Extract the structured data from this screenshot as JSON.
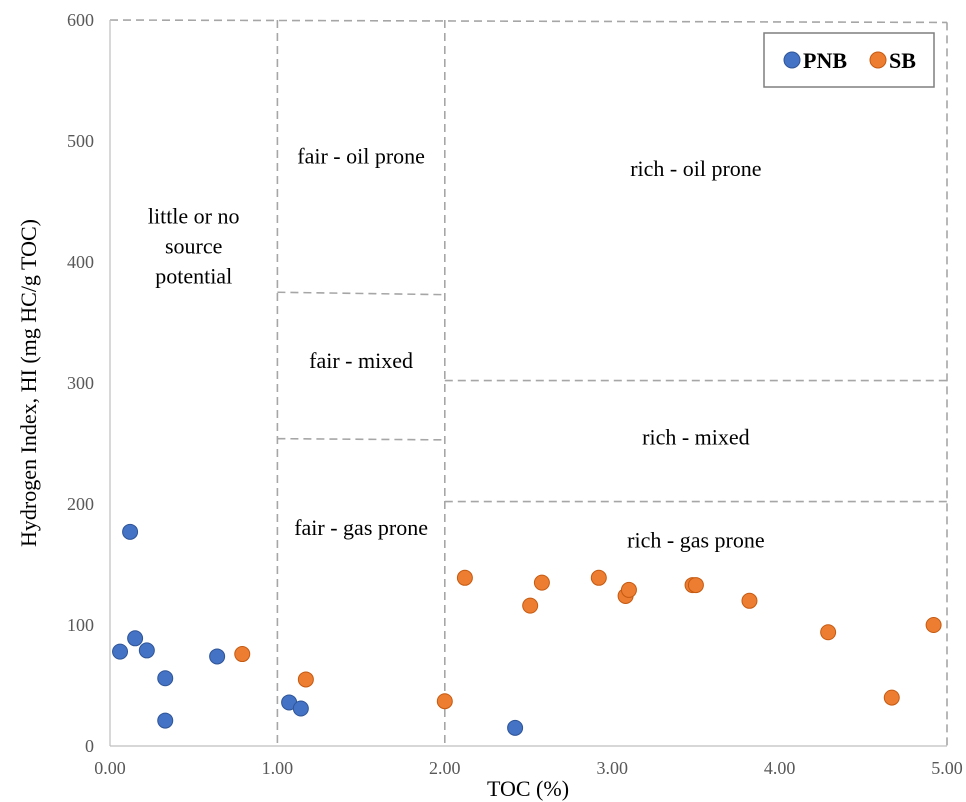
{
  "chart_data": {
    "type": "scatter",
    "title": "",
    "xlabel": "TOC (%)",
    "ylabel": "Hydrogen Index, HI (mg HC/g TOC)",
    "xlim": [
      0,
      5
    ],
    "ylim": [
      0,
      600
    ],
    "x_ticks": [
      "0.00",
      "1.00",
      "2.00",
      "3.00",
      "4.00",
      "5.00"
    ],
    "y_ticks": [
      "0",
      "100",
      "200",
      "300",
      "400",
      "500",
      "600"
    ],
    "grid": false,
    "legend_position": "top-right",
    "series": [
      {
        "name": "PNB",
        "color": "#4472c4",
        "points": [
          {
            "x": 0.06,
            "y": 78
          },
          {
            "x": 0.12,
            "y": 177
          },
          {
            "x": 0.15,
            "y": 89
          },
          {
            "x": 0.22,
            "y": 79
          },
          {
            "x": 0.33,
            "y": 56
          },
          {
            "x": 0.33,
            "y": 21
          },
          {
            "x": 0.64,
            "y": 74
          },
          {
            "x": 1.07,
            "y": 36
          },
          {
            "x": 1.14,
            "y": 31
          },
          {
            "x": 2.42,
            "y": 15
          }
        ]
      },
      {
        "name": "SB",
        "color": "#ed7d31",
        "points": [
          {
            "x": 0.79,
            "y": 76
          },
          {
            "x": 1.17,
            "y": 55
          },
          {
            "x": 2.0,
            "y": 37
          },
          {
            "x": 2.12,
            "y": 139
          },
          {
            "x": 2.51,
            "y": 116
          },
          {
            "x": 2.58,
            "y": 135
          },
          {
            "x": 2.92,
            "y": 139
          },
          {
            "x": 3.08,
            "y": 124
          },
          {
            "x": 3.1,
            "y": 129
          },
          {
            "x": 3.48,
            "y": 133
          },
          {
            "x": 3.5,
            "y": 133
          },
          {
            "x": 3.82,
            "y": 120
          },
          {
            "x": 4.29,
            "y": 94
          },
          {
            "x": 4.67,
            "y": 40
          },
          {
            "x": 4.92,
            "y": 100
          }
        ]
      }
    ],
    "region_lines": [
      [
        [
          0,
          600
        ],
        [
          5,
          598
        ]
      ],
      [
        [
          1,
          600
        ],
        [
          1,
          0
        ]
      ],
      [
        [
          2,
          600
        ],
        [
          2,
          0
        ]
      ],
      [
        [
          5,
          598
        ],
        [
          5,
          0
        ]
      ],
      [
        [
          1,
          375
        ],
        [
          2,
          373
        ]
      ],
      [
        [
          1,
          254
        ],
        [
          2,
          253
        ]
      ],
      [
        [
          2,
          302
        ],
        [
          5,
          302
        ]
      ],
      [
        [
          2,
          202
        ],
        [
          5,
          202
        ]
      ]
    ],
    "region_labels": [
      {
        "lines": [
          "little or no",
          "source",
          "potential"
        ],
        "x": 0.5,
        "y": 413
      },
      {
        "lines": [
          "fair - oil prone"
        ],
        "x": 1.5,
        "y": 487
      },
      {
        "lines": [
          "fair - mixed"
        ],
        "x": 1.5,
        "y": 318
      },
      {
        "lines": [
          "fair - gas prone"
        ],
        "x": 1.5,
        "y": 180
      },
      {
        "lines": [
          "rich - oil prone"
        ],
        "x": 3.5,
        "y": 477
      },
      {
        "lines": [
          "rich - mixed"
        ],
        "x": 3.5,
        "y": 255
      },
      {
        "lines": [
          "rich - gas prone"
        ],
        "x": 3.5,
        "y": 170
      }
    ]
  }
}
